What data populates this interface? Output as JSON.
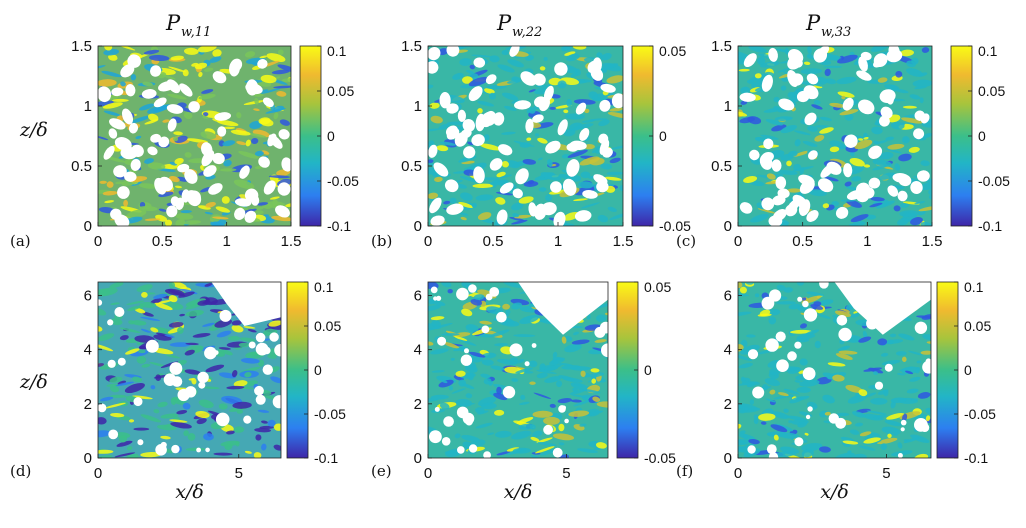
{
  "figure": {
    "rows": [
      {
        "ylabel": "z/δ",
        "xlabel": ""
      },
      {
        "ylabel": "z/δ",
        "xlabel": "x/δ"
      }
    ]
  },
  "chart_data": [
    {
      "type": "heatmap",
      "panel_label": "(a)",
      "title_main": "P",
      "title_sub": "w,11",
      "ylabel": "z/δ",
      "xlabel": "",
      "xlim": [
        0,
        1.5
      ],
      "ylim": [
        0,
        1.5
      ],
      "xticks": [
        0,
        0.5,
        1,
        1.5
      ],
      "xtick_labels": [
        "0",
        "0.5",
        "1",
        "1.5"
      ],
      "yticks": [
        0,
        0.5,
        1,
        1.5
      ],
      "ytick_labels": [
        "0",
        "0.5",
        "1",
        "1.5"
      ],
      "clim": [
        -0.1,
        0.1
      ],
      "colorbar_ticks": [
        0.1,
        0.05,
        0,
        -0.05,
        -0.1
      ],
      "colorbar_labels": [
        "0.1",
        "0.05",
        "0",
        "-0.05",
        "-0.1"
      ],
      "colormap": "parula",
      "colormap_colors": [
        "#3e26a8",
        "#2d7ff0",
        "#22b5c6",
        "#3bbf8a",
        "#a8c43c",
        "#f0ba2f",
        "#f9fb15"
      ]
    },
    {
      "type": "heatmap",
      "panel_label": "(b)",
      "title_main": "P",
      "title_sub": "w,22",
      "ylabel": "",
      "xlabel": "",
      "xlim": [
        0,
        1.5
      ],
      "ylim": [
        0,
        1.5
      ],
      "xticks": [
        0,
        0.5,
        1,
        1.5
      ],
      "xtick_labels": [
        "0",
        "0.5",
        "1",
        "1.5"
      ],
      "yticks": [
        0,
        0.5,
        1,
        1.5
      ],
      "ytick_labels": [
        "0",
        "0.5",
        "1",
        "1.5"
      ],
      "clim": [
        -0.05,
        0.05
      ],
      "colorbar_ticks": [
        0.05,
        0,
        -0.05
      ],
      "colorbar_labels": [
        "0.05",
        "0",
        "-0.05"
      ],
      "colormap": "parula"
    },
    {
      "type": "heatmap",
      "panel_label": "(c)",
      "title_main": "P",
      "title_sub": "w,33",
      "ylabel": "",
      "xlabel": "",
      "xlim": [
        0,
        1.5
      ],
      "ylim": [
        0,
        1.5
      ],
      "xticks": [
        0,
        0.5,
        1,
        1.5
      ],
      "xtick_labels": [
        "0",
        "0.5",
        "1",
        "1.5"
      ],
      "yticks": [
        0,
        0.5,
        1,
        1.5
      ],
      "ytick_labels": [
        "0",
        "0.5",
        "1",
        "1.5"
      ],
      "clim": [
        -0.1,
        0.1
      ],
      "colorbar_ticks": [
        0.1,
        0.05,
        0,
        -0.05,
        -0.1
      ],
      "colorbar_labels": [
        "0.1",
        "0.05",
        "0",
        "-0.05",
        "-0.1"
      ],
      "colormap": "parula"
    },
    {
      "type": "heatmap",
      "panel_label": "(d)",
      "title_main": "",
      "title_sub": "",
      "ylabel": "z/δ",
      "xlabel": "x/δ",
      "xlim": [
        0,
        6.5
      ],
      "ylim": [
        0,
        6.5
      ],
      "xticks": [
        0,
        5
      ],
      "xtick_labels": [
        "0",
        "5"
      ],
      "yticks": [
        0,
        2,
        4,
        6
      ],
      "ytick_labels": [
        "0",
        "2",
        "4",
        "6"
      ],
      "clim": [
        -0.1,
        0.1
      ],
      "colorbar_ticks": [
        0.1,
        0.05,
        0,
        -0.05,
        -0.1
      ],
      "colorbar_labels": [
        "0.1",
        "0.05",
        "0",
        "-0.05",
        "-0.1"
      ],
      "colormap": "parula"
    },
    {
      "type": "heatmap",
      "panel_label": "(e)",
      "title_main": "",
      "title_sub": "",
      "ylabel": "",
      "xlabel": "x/δ",
      "xlim": [
        0,
        6.5
      ],
      "ylim": [
        0,
        6.5
      ],
      "xticks": [
        0,
        5
      ],
      "xtick_labels": [
        "0",
        "5"
      ],
      "yticks": [
        0,
        2,
        4,
        6
      ],
      "ytick_labels": [
        "0",
        "2",
        "4",
        "6"
      ],
      "clim": [
        -0.05,
        0.05
      ],
      "colorbar_ticks": [
        0.05,
        0,
        -0.05
      ],
      "colorbar_labels": [
        "0.05",
        "0",
        "-0.05"
      ],
      "colormap": "parula"
    },
    {
      "type": "heatmap",
      "panel_label": "(f)",
      "title_main": "",
      "title_sub": "",
      "ylabel": "",
      "xlabel": "x/δ",
      "xlim": [
        0,
        6.5
      ],
      "ylim": [
        0,
        6.5
      ],
      "xticks": [
        0,
        5
      ],
      "xtick_labels": [
        "0",
        "5"
      ],
      "yticks": [
        0,
        2,
        4,
        6
      ],
      "ytick_labels": [
        "0",
        "2",
        "4",
        "6"
      ],
      "clim": [
        -0.1,
        0.1
      ],
      "colorbar_ticks": [
        0.1,
        0.05,
        0,
        -0.05,
        -0.1
      ],
      "colorbar_labels": [
        "0.1",
        "0.05",
        "0",
        "-0.05",
        "-0.1"
      ],
      "colormap": "parula"
    }
  ]
}
